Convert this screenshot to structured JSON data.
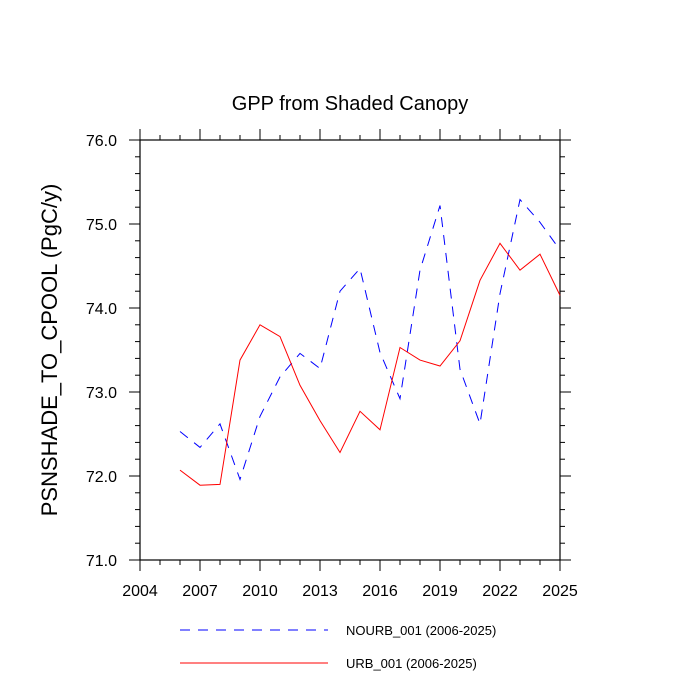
{
  "chart_data": {
    "type": "line",
    "title": "GPP from Shaded Canopy",
    "xlabel": "",
    "ylabel": "PSNSHADE_TO_CPOOL  (PgC/y)",
    "xlim": [
      2004,
      2025
    ],
    "ylim": [
      71.0,
      76.0
    ],
    "xticks": [
      "2004",
      "2007",
      "2010",
      "2013",
      "2016",
      "2019",
      "2022",
      "2025"
    ],
    "yticks": [
      "71.0",
      "72.0",
      "73.0",
      "74.0",
      "75.0",
      "76.0"
    ],
    "x": [
      2006,
      2007,
      2008,
      2009,
      2010,
      2011,
      2012,
      2013,
      2014,
      2015,
      2016,
      2017,
      2018,
      2019,
      2020,
      2021,
      2022,
      2023,
      2024,
      2025
    ],
    "series": [
      {
        "name": "NOURB_001 (2006-2025)",
        "color": "#0000ff",
        "dash": "dashed",
        "values": [
          72.53,
          72.34,
          72.62,
          71.96,
          72.71,
          73.18,
          73.46,
          73.28,
          74.2,
          74.47,
          73.47,
          72.92,
          74.45,
          75.22,
          73.27,
          72.62,
          74.17,
          75.29,
          75.02,
          74.69
        ]
      },
      {
        "name": "URB_001 (2006-2025)",
        "color": "#ff0000",
        "dash": "solid",
        "values": [
          72.07,
          71.89,
          71.9,
          73.38,
          73.8,
          73.66,
          73.08,
          72.66,
          72.28,
          72.77,
          72.55,
          73.53,
          73.38,
          73.31,
          73.61,
          74.33,
          74.77,
          74.45,
          74.64,
          74.15
        ]
      }
    ],
    "legend_position": "bottom"
  }
}
